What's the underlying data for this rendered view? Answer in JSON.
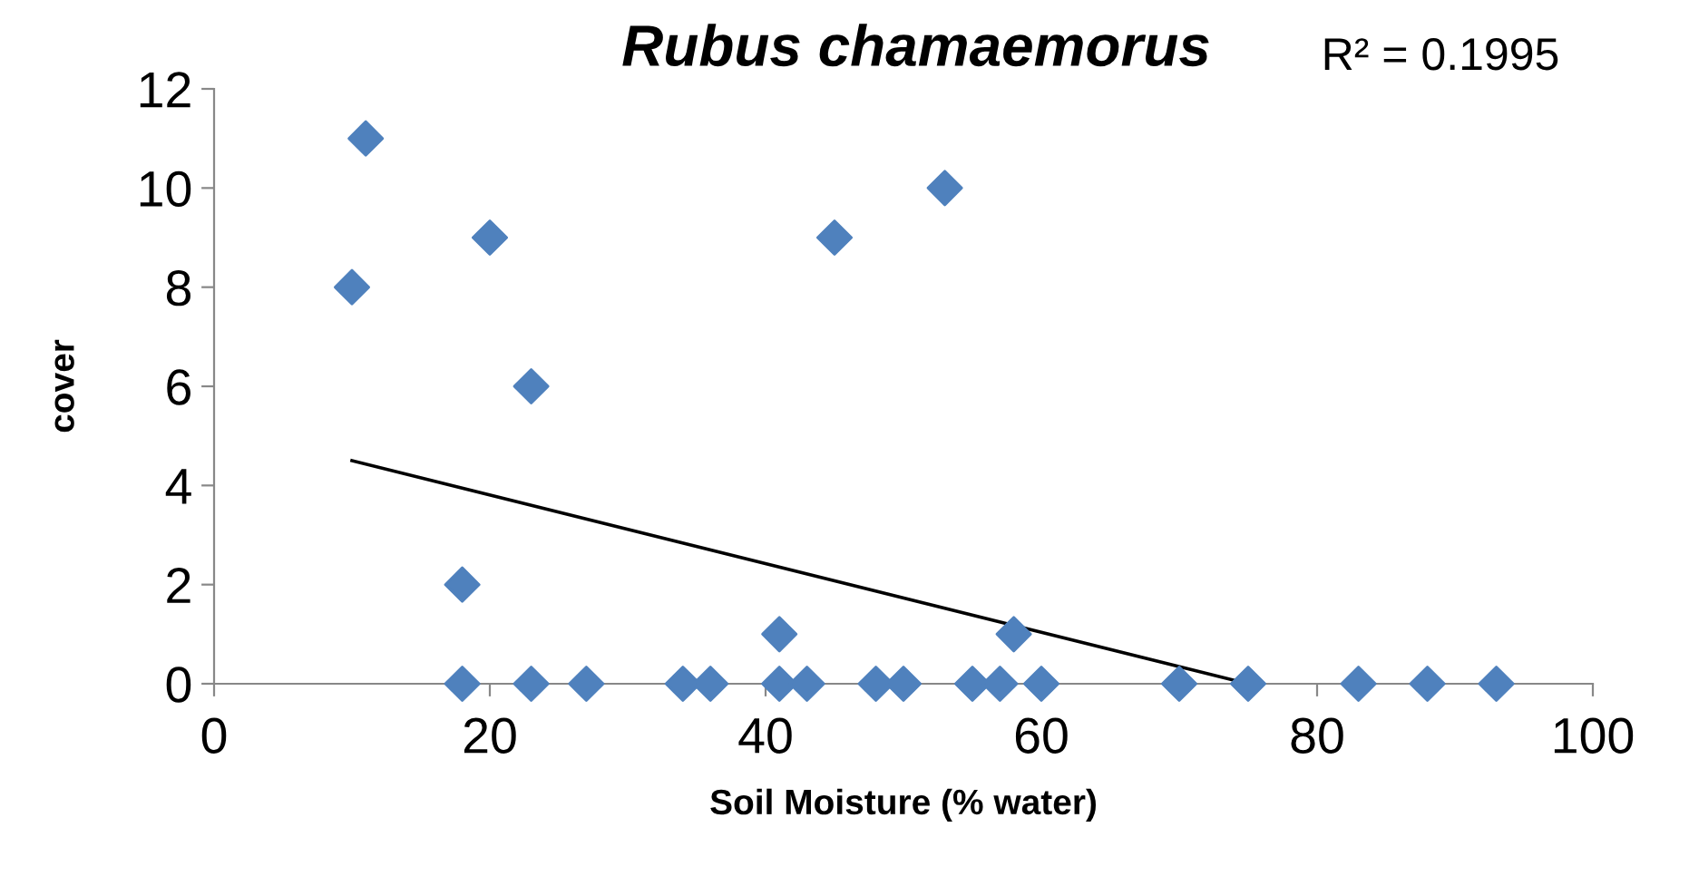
{
  "chart_data": {
    "type": "scatter",
    "title": "Rubus chamaemorus",
    "xlabel": "Soil Moisture (% water)",
    "ylabel": "cover",
    "annotations": [
      "R² = 0.1995"
    ],
    "series": [
      {
        "color": "#4f81bd",
        "marker": "diamond",
        "x": [
          10,
          11,
          20,
          23,
          18,
          41,
          45,
          53,
          58,
          18,
          23,
          27,
          34,
          36,
          41,
          43,
          48,
          50,
          55,
          57,
          60,
          70,
          75,
          83,
          88,
          93
        ],
        "values": [
          8,
          11,
          9,
          6,
          2,
          1,
          9,
          10,
          1,
          0,
          0,
          0,
          0,
          0,
          0,
          0,
          0,
          0,
          0,
          0,
          0,
          0,
          0,
          0,
          0,
          0
        ]
      },
      {
        "type": "line",
        "color": "#000000",
        "marker": "none",
        "x": [
          10,
          75
        ],
        "values": [
          4.5,
          0
        ]
      }
    ],
    "xlim": [
      0,
      100
    ],
    "xticks": [
      0,
      20,
      40,
      60,
      80,
      100
    ],
    "ylim": [
      0,
      12
    ],
    "yticks": [
      0,
      2,
      4,
      6,
      8,
      10,
      12
    ],
    "grid": false,
    "legend": false
  }
}
